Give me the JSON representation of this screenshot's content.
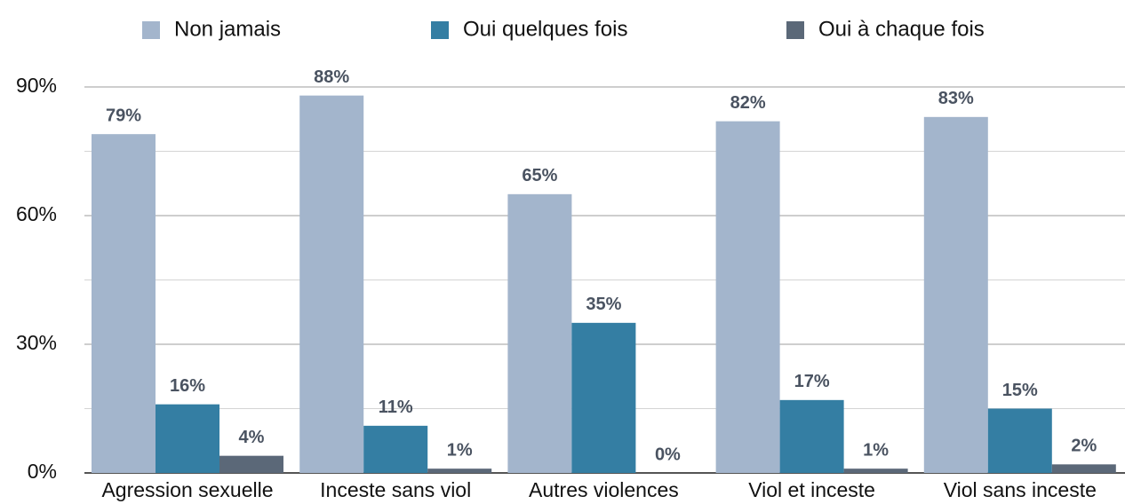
{
  "chart_data": {
    "type": "bar",
    "categories": [
      "Agression sexuelle",
      "Inceste sans viol",
      "Autres violences",
      "Viol et inceste",
      "Viol sans inceste"
    ],
    "series": [
      {
        "name": "Non jamais",
        "color": "#a3b5cc",
        "values": [
          79,
          88,
          65,
          82,
          83
        ],
        "value_labels": [
          "79%",
          "88%",
          "65%",
          "82%",
          "83%"
        ]
      },
      {
        "name": "Oui quelques fois",
        "color": "#347ea3",
        "values": [
          16,
          11,
          35,
          17,
          15
        ],
        "value_labels": [
          "16%",
          "11%",
          "35%",
          "17%",
          "15%"
        ]
      },
      {
        "name": "Oui à chaque fois",
        "color": "#5b6878",
        "values": [
          4,
          1,
          0,
          1,
          2
        ],
        "value_labels": [
          "4%",
          "1%",
          "0%",
          "1%",
          "2%"
        ]
      }
    ],
    "ylim": [
      0,
      90
    ],
    "yticks": [
      {
        "value": 0,
        "label": "0%"
      },
      {
        "value": 30,
        "label": "30%"
      },
      {
        "value": 60,
        "label": "60%"
      },
      {
        "value": 90,
        "label": "90%"
      }
    ],
    "minor_yticks": [
      15,
      45,
      75
    ],
    "grid": true,
    "legend": "top"
  }
}
